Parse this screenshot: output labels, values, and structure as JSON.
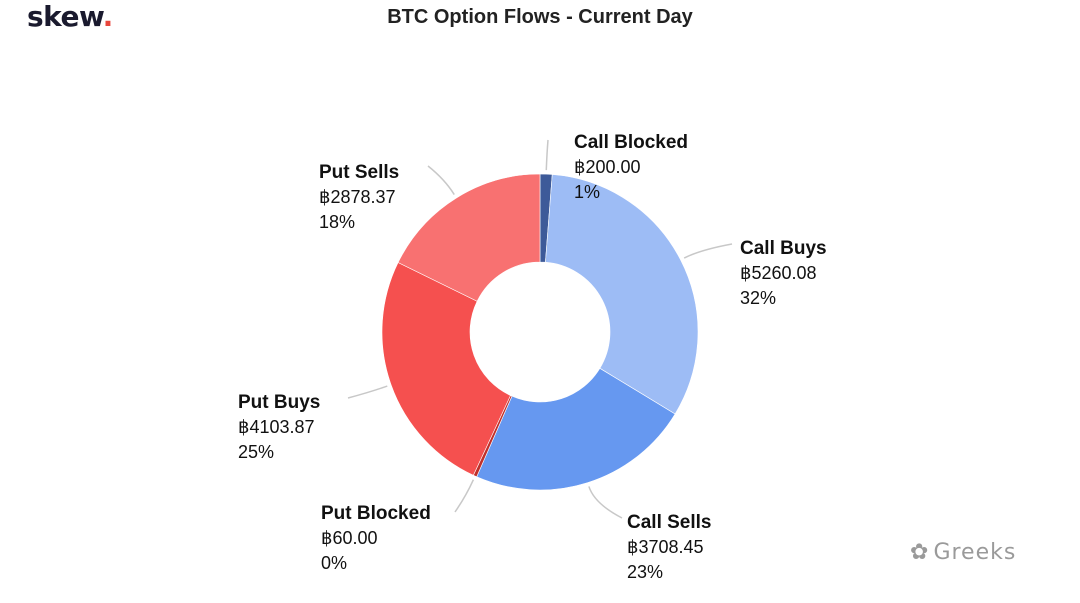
{
  "brand": {
    "name": "skew",
    "dot": "."
  },
  "watermark": {
    "icon": "wechat-icon",
    "glyph": "✿",
    "text": "Greeks"
  },
  "chart_data": {
    "type": "pie",
    "title": "BTC Option Flows - Current Day",
    "donut": true,
    "start_angle_deg": 0,
    "slices": [
      {
        "name": "Call Blocked",
        "value": 200.0,
        "value_label": "฿200.00",
        "percent_label": "1%",
        "color": "#3d5a99"
      },
      {
        "name": "Call Buys",
        "value": 5260.08,
        "value_label": "฿5260.08",
        "percent_label": "32%",
        "color": "#9dbcf5"
      },
      {
        "name": "Call Sells",
        "value": 3708.45,
        "value_label": "฿3708.45",
        "percent_label": "23%",
        "color": "#6698f0"
      },
      {
        "name": "Put Blocked",
        "value": 60.0,
        "value_label": "฿60.00",
        "percent_label": "0%",
        "color": "#c0302b"
      },
      {
        "name": "Put Buys",
        "value": 4103.87,
        "value_label": "฿4103.87",
        "percent_label": "25%",
        "color": "#f5504f"
      },
      {
        "name": "Put Sells",
        "value": 2878.37,
        "value_label": "฿2878.37",
        "percent_label": "18%",
        "color": "#f87171"
      }
    ]
  }
}
